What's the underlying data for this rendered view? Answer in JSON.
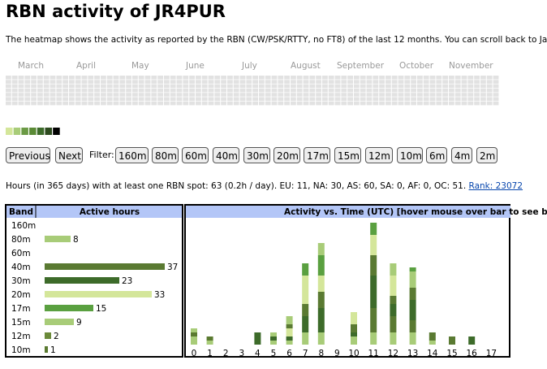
{
  "title": "RBN activity of JR4PUR",
  "description": "The heatmap shows the activity as reported by the RBN (CW/PSK/RTTY, no FT8) of the last 12 months. You can scroll back to Ja",
  "heatmap": {
    "months": [
      "March",
      "April",
      "May",
      "June",
      "July",
      "August",
      "September",
      "October",
      "November"
    ],
    "legend_colors": [
      "#d4e69a",
      "#a8cc78",
      "#6b9a45",
      "#5a8a35",
      "#3d6b2a",
      "#2d4a1e",
      "#000000"
    ]
  },
  "nav": {
    "previous": "Previous",
    "next": "Next",
    "filter_label": "Filter:",
    "bands": [
      "160m",
      "80m",
      "60m",
      "40m",
      "30m",
      "20m",
      "17m",
      "15m",
      "12m",
      "10m",
      "6m",
      "4m",
      "2m"
    ]
  },
  "stats": {
    "text": "Hours (in 365 days) with at least one RBN spot: 63 (0.2h / day). EU: 11, NA: 30, AS: 60, SA: 0, AF: 0, OC: 51.",
    "rank_link": "Rank: 23072"
  },
  "band_table": {
    "headers": [
      "Band",
      "Active hours"
    ],
    "rows": [
      {
        "band": "160m"
      },
      {
        "band": "80m",
        "hours": 8,
        "color": "#a8cc78"
      },
      {
        "band": "60m"
      },
      {
        "band": "40m",
        "hours": 37,
        "color": "#5a7a32"
      },
      {
        "band": "30m",
        "hours": 23,
        "color": "#3d6b2a"
      },
      {
        "band": "20m",
        "hours": 33,
        "color": "#d4e69a"
      },
      {
        "band": "17m",
        "hours": 15,
        "color": "#5aa040"
      },
      {
        "band": "15m",
        "hours": 9,
        "color": "#a8cc78"
      },
      {
        "band": "12m",
        "hours": 2,
        "color": "#6b8a3a"
      },
      {
        "band": "10m",
        "hours": 1,
        "color": "#5a7a30"
      }
    ]
  },
  "time_chart": {
    "title": "Activity vs. Time (UTC) [hover mouse over bar to see b",
    "hours": [
      0,
      1,
      2,
      3,
      4,
      5,
      6,
      7,
      8,
      9,
      10,
      11,
      12,
      13,
      14,
      15,
      16,
      17
    ],
    "bars": [
      [
        {
          "color": "#a8cc78",
          "value": 2
        },
        {
          "color": "#5a7a30",
          "value": 1
        },
        {
          "color": "#a8cc78",
          "value": 1
        }
      ],
      [
        {
          "color": "#a8cc78",
          "value": 1
        },
        {
          "color": "#5a7a30",
          "value": 1
        }
      ],
      [],
      [],
      [
        {
          "color": "#3d6b2a",
          "value": 3
        }
      ],
      [
        {
          "color": "#a8cc78",
          "value": 1
        },
        {
          "color": "#3d6b2a",
          "value": 1
        },
        {
          "color": "#a8cc78",
          "value": 1
        }
      ],
      [
        {
          "color": "#a8cc78",
          "value": 1
        },
        {
          "color": "#3d6b2a",
          "value": 1
        },
        {
          "color": "#d4e69a",
          "value": 2
        },
        {
          "color": "#5a7a32",
          "value": 1
        },
        {
          "color": "#a8cc78",
          "value": 2
        }
      ],
      [
        {
          "color": "#a8cc78",
          "value": 3
        },
        {
          "color": "#3d6b2a",
          "value": 4
        },
        {
          "color": "#5a7a32",
          "value": 3
        },
        {
          "color": "#d4e69a",
          "value": 7
        },
        {
          "color": "#5aa040",
          "value": 3
        }
      ],
      [
        {
          "color": "#a8cc78",
          "value": 3
        },
        {
          "color": "#3d6b2a",
          "value": 6
        },
        {
          "color": "#5a7a32",
          "value": 4
        },
        {
          "color": "#d4e69a",
          "value": 4
        },
        {
          "color": "#5aa040",
          "value": 5
        },
        {
          "color": "#a8cc78",
          "value": 3
        }
      ],
      [],
      [
        {
          "color": "#a8cc78",
          "value": 2
        },
        {
          "color": "#3d6b2a",
          "value": 1
        },
        {
          "color": "#5a7a32",
          "value": 2
        },
        {
          "color": "#d4e69a",
          "value": 3
        }
      ],
      [
        {
          "color": "#a8cc78",
          "value": 3
        },
        {
          "color": "#5a7a32",
          "value": 6
        },
        {
          "color": "#3d6b2a",
          "value": 8
        },
        {
          "color": "#5a7a32",
          "value": 5
        },
        {
          "color": "#d4e69a",
          "value": 5
        },
        {
          "color": "#5aa040",
          "value": 3
        }
      ],
      [
        {
          "color": "#a8cc78",
          "value": 3
        },
        {
          "color": "#5a7a32",
          "value": 4
        },
        {
          "color": "#3d6b2a",
          "value": 3
        },
        {
          "color": "#5a7a32",
          "value": 2
        },
        {
          "color": "#d4e69a",
          "value": 5
        },
        {
          "color": "#a8cc78",
          "value": 3
        }
      ],
      [
        {
          "color": "#a8cc78",
          "value": 3
        },
        {
          "color": "#5a7a32",
          "value": 3
        },
        {
          "color": "#3d6b2a",
          "value": 5
        },
        {
          "color": "#5a7a32",
          "value": 3
        },
        {
          "color": "#a8cc78",
          "value": 4
        },
        {
          "color": "#5aa040",
          "value": 1
        }
      ],
      [
        {
          "color": "#a8cc78",
          "value": 1
        },
        {
          "color": "#5a7a32",
          "value": 2
        }
      ],
      [
        {
          "color": "#5a7a32",
          "value": 2
        }
      ],
      [
        {
          "color": "#3d6b2a",
          "value": 2
        }
      ],
      []
    ]
  }
}
